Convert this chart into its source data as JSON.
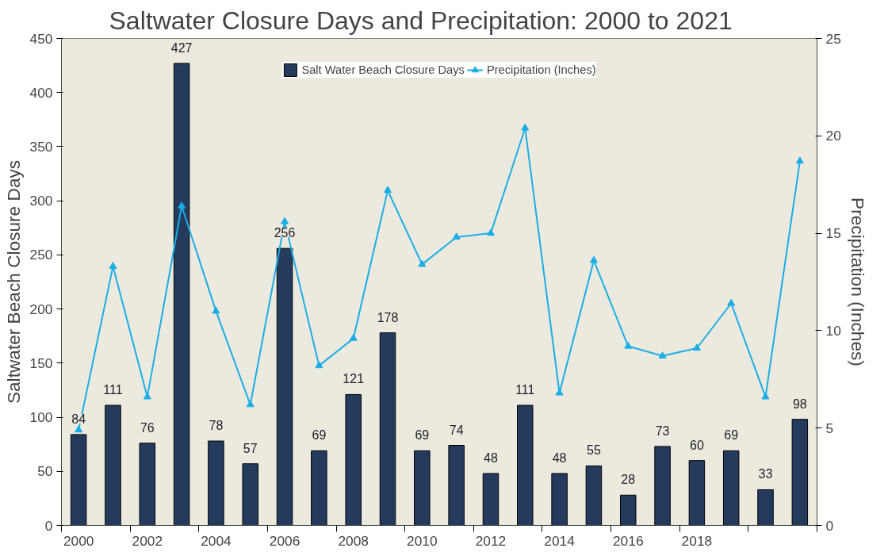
{
  "chart_data": {
    "type": "bar",
    "title": "Saltwater Closure Days and Precipitation:  2000 to 2021",
    "categories": [
      "2000",
      null,
      "2002",
      null,
      "2004",
      null,
      "2006",
      null,
      "2008",
      null,
      "2010",
      null,
      "2012",
      null,
      "2014",
      null,
      "2016",
      null,
      "2018",
      null,
      null,
      null
    ],
    "series": [
      {
        "name": "Salt Water Beach Closure Days",
        "color": "#243b5e",
        "values": [
          84,
          111,
          76,
          427,
          78,
          57,
          256,
          69,
          121,
          178,
          69,
          74,
          48,
          111,
          48,
          55,
          28,
          73,
          60,
          69,
          33,
          98
        ],
        "value_labels": [
          "84",
          "111",
          "76",
          "427",
          "78",
          "57",
          "256",
          "69",
          "121",
          "178",
          "69",
          "74",
          "48",
          "111",
          "48",
          "55",
          "28",
          "73",
          "60",
          "69",
          "33",
          "98"
        ]
      },
      {
        "name": "Precipitation (Inches)",
        "type": "line",
        "axis": "y2",
        "color": "#1aaee5",
        "marker": "triangle",
        "values": [
          4.9,
          13.3,
          6.6,
          16.4,
          11.0,
          6.2,
          15.6,
          8.2,
          9.6,
          17.2,
          13.4,
          14.8,
          15.0,
          20.4,
          6.8,
          13.6,
          9.2,
          8.7,
          9.1,
          11.4,
          6.6,
          18.7
        ]
      }
    ],
    "ylabel": "Saltwater Beach Closure Days",
    "y2label": "Precipitation (Inches)",
    "ylim": [
      0,
      450
    ],
    "yticks": [
      0,
      50,
      100,
      150,
      200,
      250,
      300,
      350,
      400,
      450
    ],
    "y2lim": [
      0,
      25
    ],
    "y2ticks": [
      0,
      5,
      10,
      15,
      20,
      25
    ],
    "grid": false,
    "legend": "top"
  }
}
